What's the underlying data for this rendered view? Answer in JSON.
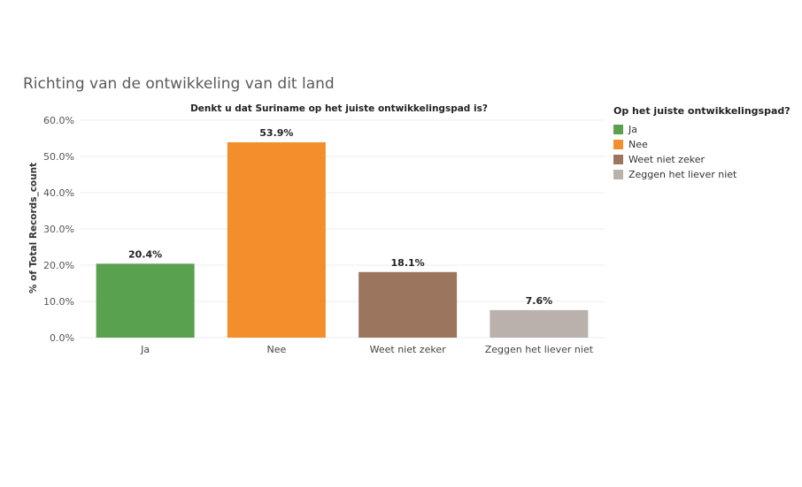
{
  "dashboard": {
    "title": "Richting van de ontwikkeling van dit land"
  },
  "chart_data": {
    "type": "bar",
    "title": "Denkt u dat Suriname op het juiste ontwikkelingspad is?",
    "xlabel": "",
    "ylabel": "% of Total Records_count",
    "categories": [
      "Ja",
      "Nee",
      "Weet niet zeker",
      "Zeggen het liever niet"
    ],
    "values": [
      20.4,
      53.9,
      18.1,
      7.6
    ],
    "value_labels": [
      "20.4%",
      "53.9%",
      "18.1%",
      "7.6%"
    ],
    "colors": [
      "#59a14f",
      "#f28e2b",
      "#9c755f",
      "#bab0ac"
    ],
    "ylim": [
      0,
      60
    ],
    "yticks": [
      0,
      10,
      20,
      30,
      40,
      50,
      60
    ],
    "ytick_labels": [
      "0.0%",
      "10.0%",
      "20.0%",
      "30.0%",
      "40.0%",
      "50.0%",
      "60.0%"
    ],
    "grid": true,
    "legend": {
      "title": "Op het juiste ontwikkelingspad?",
      "placement": "right",
      "entries": [
        "Ja",
        "Nee",
        "Weet niet zeker",
        "Zeggen het liever niet"
      ]
    }
  }
}
